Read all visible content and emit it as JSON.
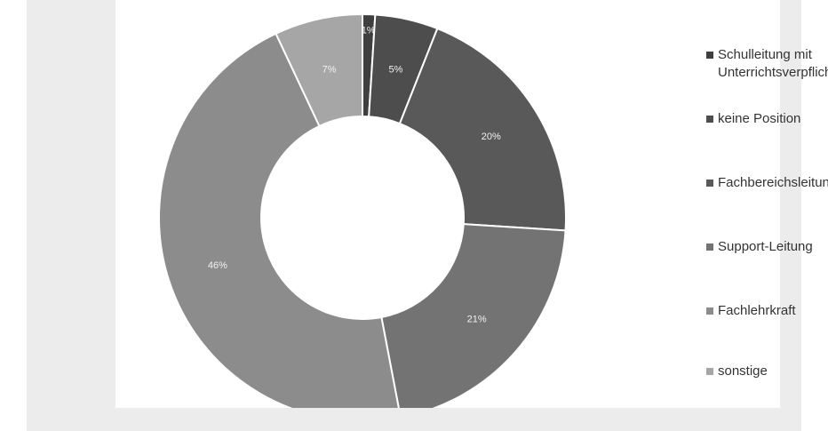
{
  "chart_data": {
    "type": "pie",
    "donut": true,
    "categories": [
      "Schulleitung mit Unterrichtsverpflichtung",
      "keine Position",
      "Fachbereichsleitung",
      "Support-Leitung",
      "Fachlehrkraft",
      "sonstige"
    ],
    "values": [
      1,
      5,
      20,
      21,
      46,
      7
    ],
    "data_labels": [
      "1%",
      "5%",
      "20%",
      "21%",
      "46%",
      "7%"
    ],
    "legend_labels": [
      "Schulleitung mit\nUnterrichtsverpflichtung",
      "keine Position",
      "Fachbereichsleitung",
      "Support-Leitung",
      "Fachlehrkraft",
      "sonstige"
    ],
    "colors": [
      "#3f3f3f",
      "#4d4d4d",
      "#595959",
      "#737373",
      "#8c8c8c",
      "#a6a6a6"
    ],
    "legend_position": "right"
  }
}
